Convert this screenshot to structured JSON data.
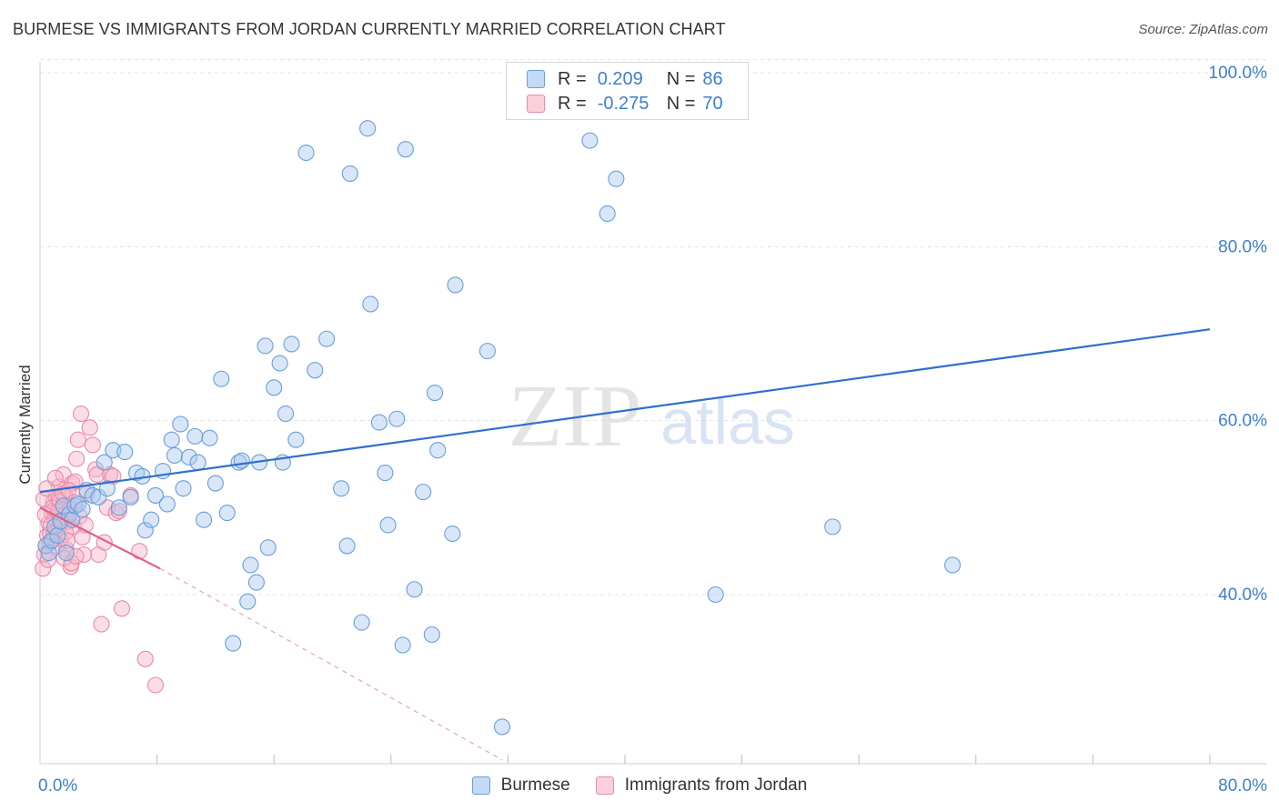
{
  "title": "BURMESE VS IMMIGRANTS FROM JORDAN CURRENTLY MARRIED CORRELATION CHART",
  "source": "Source: ZipAtlas.com",
  "watermark": {
    "zip": "ZIP",
    "atlas": "atlas"
  },
  "legend_top": {
    "r_label": "R =",
    "n_label": "N =",
    "rows": [
      {
        "r": "0.209",
        "n": "86"
      },
      {
        "r": "-0.275",
        "n": "70"
      }
    ]
  },
  "colors": {
    "burmese_fill": "#a9c8ef",
    "burmese_stroke": "#6a9fd8",
    "burmese_line": "#2f6fcb",
    "jordan_fill": "#f6b3c8",
    "jordan_stroke": "#e98aa9",
    "jordan_line": "#e0608f",
    "axis_text": "#3d7fcf",
    "grid": "#e3e3e3"
  },
  "chart_data": {
    "type": "scatter",
    "title": "BURMESE VS IMMIGRANTS FROM JORDAN CURRENTLY MARRIED CORRELATION CHART",
    "xlabel": "",
    "ylabel": "Currently Married",
    "xlim": [
      0,
      80
    ],
    "ylim": [
      21,
      102
    ],
    "x_tick_labels": [
      {
        "value": 0,
        "label": "0.0%"
      },
      {
        "value": 80,
        "label": "80.0%"
      }
    ],
    "y_tick_labels": [
      {
        "value": 40,
        "label": "40.0%"
      },
      {
        "value": 60,
        "label": "60.0%"
      },
      {
        "value": 80,
        "label": "80.0%"
      },
      {
        "value": 100,
        "label": "100.0%"
      }
    ],
    "series": [
      {
        "name": "Burmese",
        "r": 0.209,
        "n": 86,
        "trend": {
          "x0": 0,
          "y0": 51.8,
          "x1": 80,
          "y1": 70.5
        },
        "points": [
          [
            0.4,
            45.6
          ],
          [
            0.6,
            44.8
          ],
          [
            0.8,
            46.2
          ],
          [
            1.0,
            47.8
          ],
          [
            1.2,
            46.8
          ],
          [
            1.4,
            48.4
          ],
          [
            1.6,
            50.2
          ],
          [
            1.8,
            44.8
          ],
          [
            2.0,
            49.2
          ],
          [
            2.2,
            48.6
          ],
          [
            2.4,
            50.2
          ],
          [
            2.6,
            50.4
          ],
          [
            2.9,
            49.8
          ],
          [
            3.2,
            52.0
          ],
          [
            3.6,
            51.4
          ],
          [
            4.0,
            51.2
          ],
          [
            4.4,
            55.2
          ],
          [
            4.6,
            52.2
          ],
          [
            5.0,
            56.6
          ],
          [
            5.4,
            50.0
          ],
          [
            5.8,
            56.4
          ],
          [
            6.2,
            51.2
          ],
          [
            6.6,
            54.0
          ],
          [
            7.0,
            53.6
          ],
          [
            7.2,
            47.4
          ],
          [
            7.6,
            48.6
          ],
          [
            7.9,
            51.4
          ],
          [
            8.4,
            54.2
          ],
          [
            8.7,
            50.4
          ],
          [
            9.0,
            57.8
          ],
          [
            9.2,
            56.0
          ],
          [
            9.6,
            59.6
          ],
          [
            9.8,
            52.2
          ],
          [
            10.2,
            55.8
          ],
          [
            10.6,
            58.2
          ],
          [
            10.8,
            55.2
          ],
          [
            11.2,
            48.6
          ],
          [
            11.6,
            58.0
          ],
          [
            12.0,
            52.8
          ],
          [
            12.4,
            64.8
          ],
          [
            12.8,
            49.4
          ],
          [
            13.2,
            34.4
          ],
          [
            13.6,
            55.2
          ],
          [
            13.8,
            55.4
          ],
          [
            14.2,
            39.2
          ],
          [
            14.4,
            43.4
          ],
          [
            14.8,
            41.4
          ],
          [
            15.0,
            55.2
          ],
          [
            15.4,
            68.6
          ],
          [
            15.6,
            45.4
          ],
          [
            16.0,
            63.8
          ],
          [
            16.4,
            66.6
          ],
          [
            16.6,
            55.2
          ],
          [
            16.8,
            60.8
          ],
          [
            17.2,
            68.8
          ],
          [
            17.5,
            57.8
          ],
          [
            18.2,
            90.8
          ],
          [
            18.8,
            65.8
          ],
          [
            19.6,
            69.4
          ],
          [
            20.6,
            52.2
          ],
          [
            21.0,
            45.6
          ],
          [
            21.2,
            88.4
          ],
          [
            22.0,
            36.8
          ],
          [
            22.4,
            93.6
          ],
          [
            22.6,
            73.4
          ],
          [
            23.2,
            59.8
          ],
          [
            23.6,
            54.0
          ],
          [
            23.8,
            48.0
          ],
          [
            24.4,
            60.2
          ],
          [
            24.8,
            34.2
          ],
          [
            25.0,
            91.2
          ],
          [
            25.6,
            40.6
          ],
          [
            26.2,
            51.8
          ],
          [
            26.8,
            35.4
          ],
          [
            27.0,
            63.2
          ],
          [
            27.2,
            56.6
          ],
          [
            28.2,
            47.0
          ],
          [
            28.4,
            75.6
          ],
          [
            30.6,
            68.0
          ],
          [
            31.6,
            24.8
          ],
          [
            37.6,
            92.2
          ],
          [
            38.8,
            83.8
          ],
          [
            39.4,
            87.8
          ],
          [
            46.2,
            40.0
          ],
          [
            54.2,
            47.8
          ],
          [
            62.4,
            43.4
          ]
        ]
      },
      {
        "name": "Immigrants from Jordan",
        "r": -0.275,
        "n": 70,
        "trend": {
          "x0": 0,
          "y0": 50.0,
          "x1": 8.2,
          "y1": 43.0,
          "dash_x1": 31.6,
          "dash_y1": 21
        },
        "points": [
          [
            0.2,
            43.0
          ],
          [
            0.3,
            44.6
          ],
          [
            0.4,
            45.6
          ],
          [
            0.5,
            46.8
          ],
          [
            0.6,
            48.2
          ],
          [
            0.7,
            47.0
          ],
          [
            0.8,
            49.4
          ],
          [
            0.9,
            50.6
          ],
          [
            1.0,
            48.8
          ],
          [
            1.1,
            51.2
          ],
          [
            1.2,
            47.6
          ],
          [
            1.3,
            52.4
          ],
          [
            1.4,
            46.4
          ],
          [
            1.5,
            49.8
          ],
          [
            1.6,
            53.8
          ],
          [
            1.7,
            51.4
          ],
          [
            1.8,
            45.2
          ],
          [
            1.9,
            48.4
          ],
          [
            2.0,
            50.2
          ],
          [
            2.1,
            43.2
          ],
          [
            2.2,
            52.8
          ],
          [
            2.3,
            47.8
          ],
          [
            2.4,
            53.0
          ],
          [
            2.5,
            55.6
          ],
          [
            2.6,
            57.8
          ],
          [
            2.7,
            49.0
          ],
          [
            2.8,
            60.8
          ],
          [
            2.9,
            46.6
          ],
          [
            3.0,
            44.6
          ],
          [
            3.2,
            51.6
          ],
          [
            3.4,
            59.2
          ],
          [
            3.6,
            57.2
          ],
          [
            3.8,
            54.4
          ],
          [
            3.9,
            53.8
          ],
          [
            4.0,
            44.6
          ],
          [
            4.2,
            36.6
          ],
          [
            4.4,
            46.0
          ],
          [
            4.6,
            50.0
          ],
          [
            4.8,
            53.8
          ],
          [
            5.0,
            53.6
          ],
          [
            5.2,
            49.4
          ],
          [
            5.4,
            49.6
          ],
          [
            5.6,
            38.4
          ],
          [
            6.2,
            51.4
          ],
          [
            6.8,
            45.0
          ],
          [
            7.2,
            32.6
          ],
          [
            7.9,
            29.6
          ],
          [
            0.25,
            51.0
          ],
          [
            0.35,
            49.2
          ],
          [
            0.45,
            52.2
          ],
          [
            0.55,
            44.0
          ],
          [
            0.65,
            46.0
          ],
          [
            0.75,
            48.0
          ],
          [
            0.85,
            50.0
          ],
          [
            0.95,
            47.0
          ],
          [
            1.05,
            53.4
          ],
          [
            1.15,
            45.6
          ],
          [
            1.25,
            49.6
          ],
          [
            1.35,
            50.8
          ],
          [
            1.45,
            48.6
          ],
          [
            1.55,
            51.6
          ],
          [
            1.65,
            44.2
          ],
          [
            1.75,
            47.2
          ],
          [
            1.85,
            46.2
          ],
          [
            1.95,
            52.0
          ],
          [
            2.05,
            49.8
          ],
          [
            2.15,
            43.6
          ],
          [
            2.35,
            50.6
          ],
          [
            2.45,
            44.4
          ],
          [
            3.1,
            48.0
          ]
        ]
      }
    ]
  },
  "legend_bottom": [
    "Burmese",
    "Immigrants from Jordan"
  ]
}
